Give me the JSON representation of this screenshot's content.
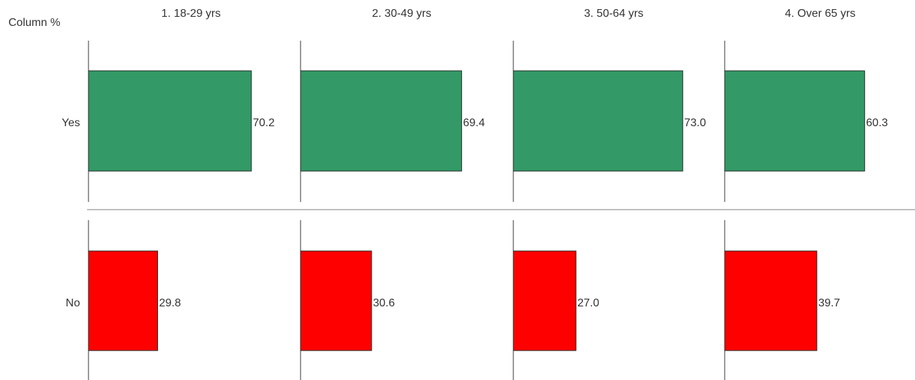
{
  "chart_data": {
    "type": "bar",
    "orientation": "horizontal",
    "corner_label": "Column %",
    "categories": [
      "1. 18-29 yrs",
      "2. 30-49 yrs",
      "3. 50-64 yrs",
      "4. Over 65 yrs"
    ],
    "series": [
      {
        "name": "Yes",
        "values": [
          70.2,
          69.4,
          73.0,
          60.3
        ],
        "color": "#339966"
      },
      {
        "name": "No",
        "values": [
          29.8,
          30.6,
          27.0,
          39.7
        ],
        "color": "#ff0000"
      }
    ],
    "value_labels": {
      "Yes": [
        "70.2",
        "69.4",
        "73.0",
        "60.3"
      ],
      "No": [
        "29.8",
        "30.6",
        "27.0",
        "39.7"
      ]
    },
    "xlim": [
      0,
      100
    ],
    "grid": false,
    "legend": "none"
  }
}
